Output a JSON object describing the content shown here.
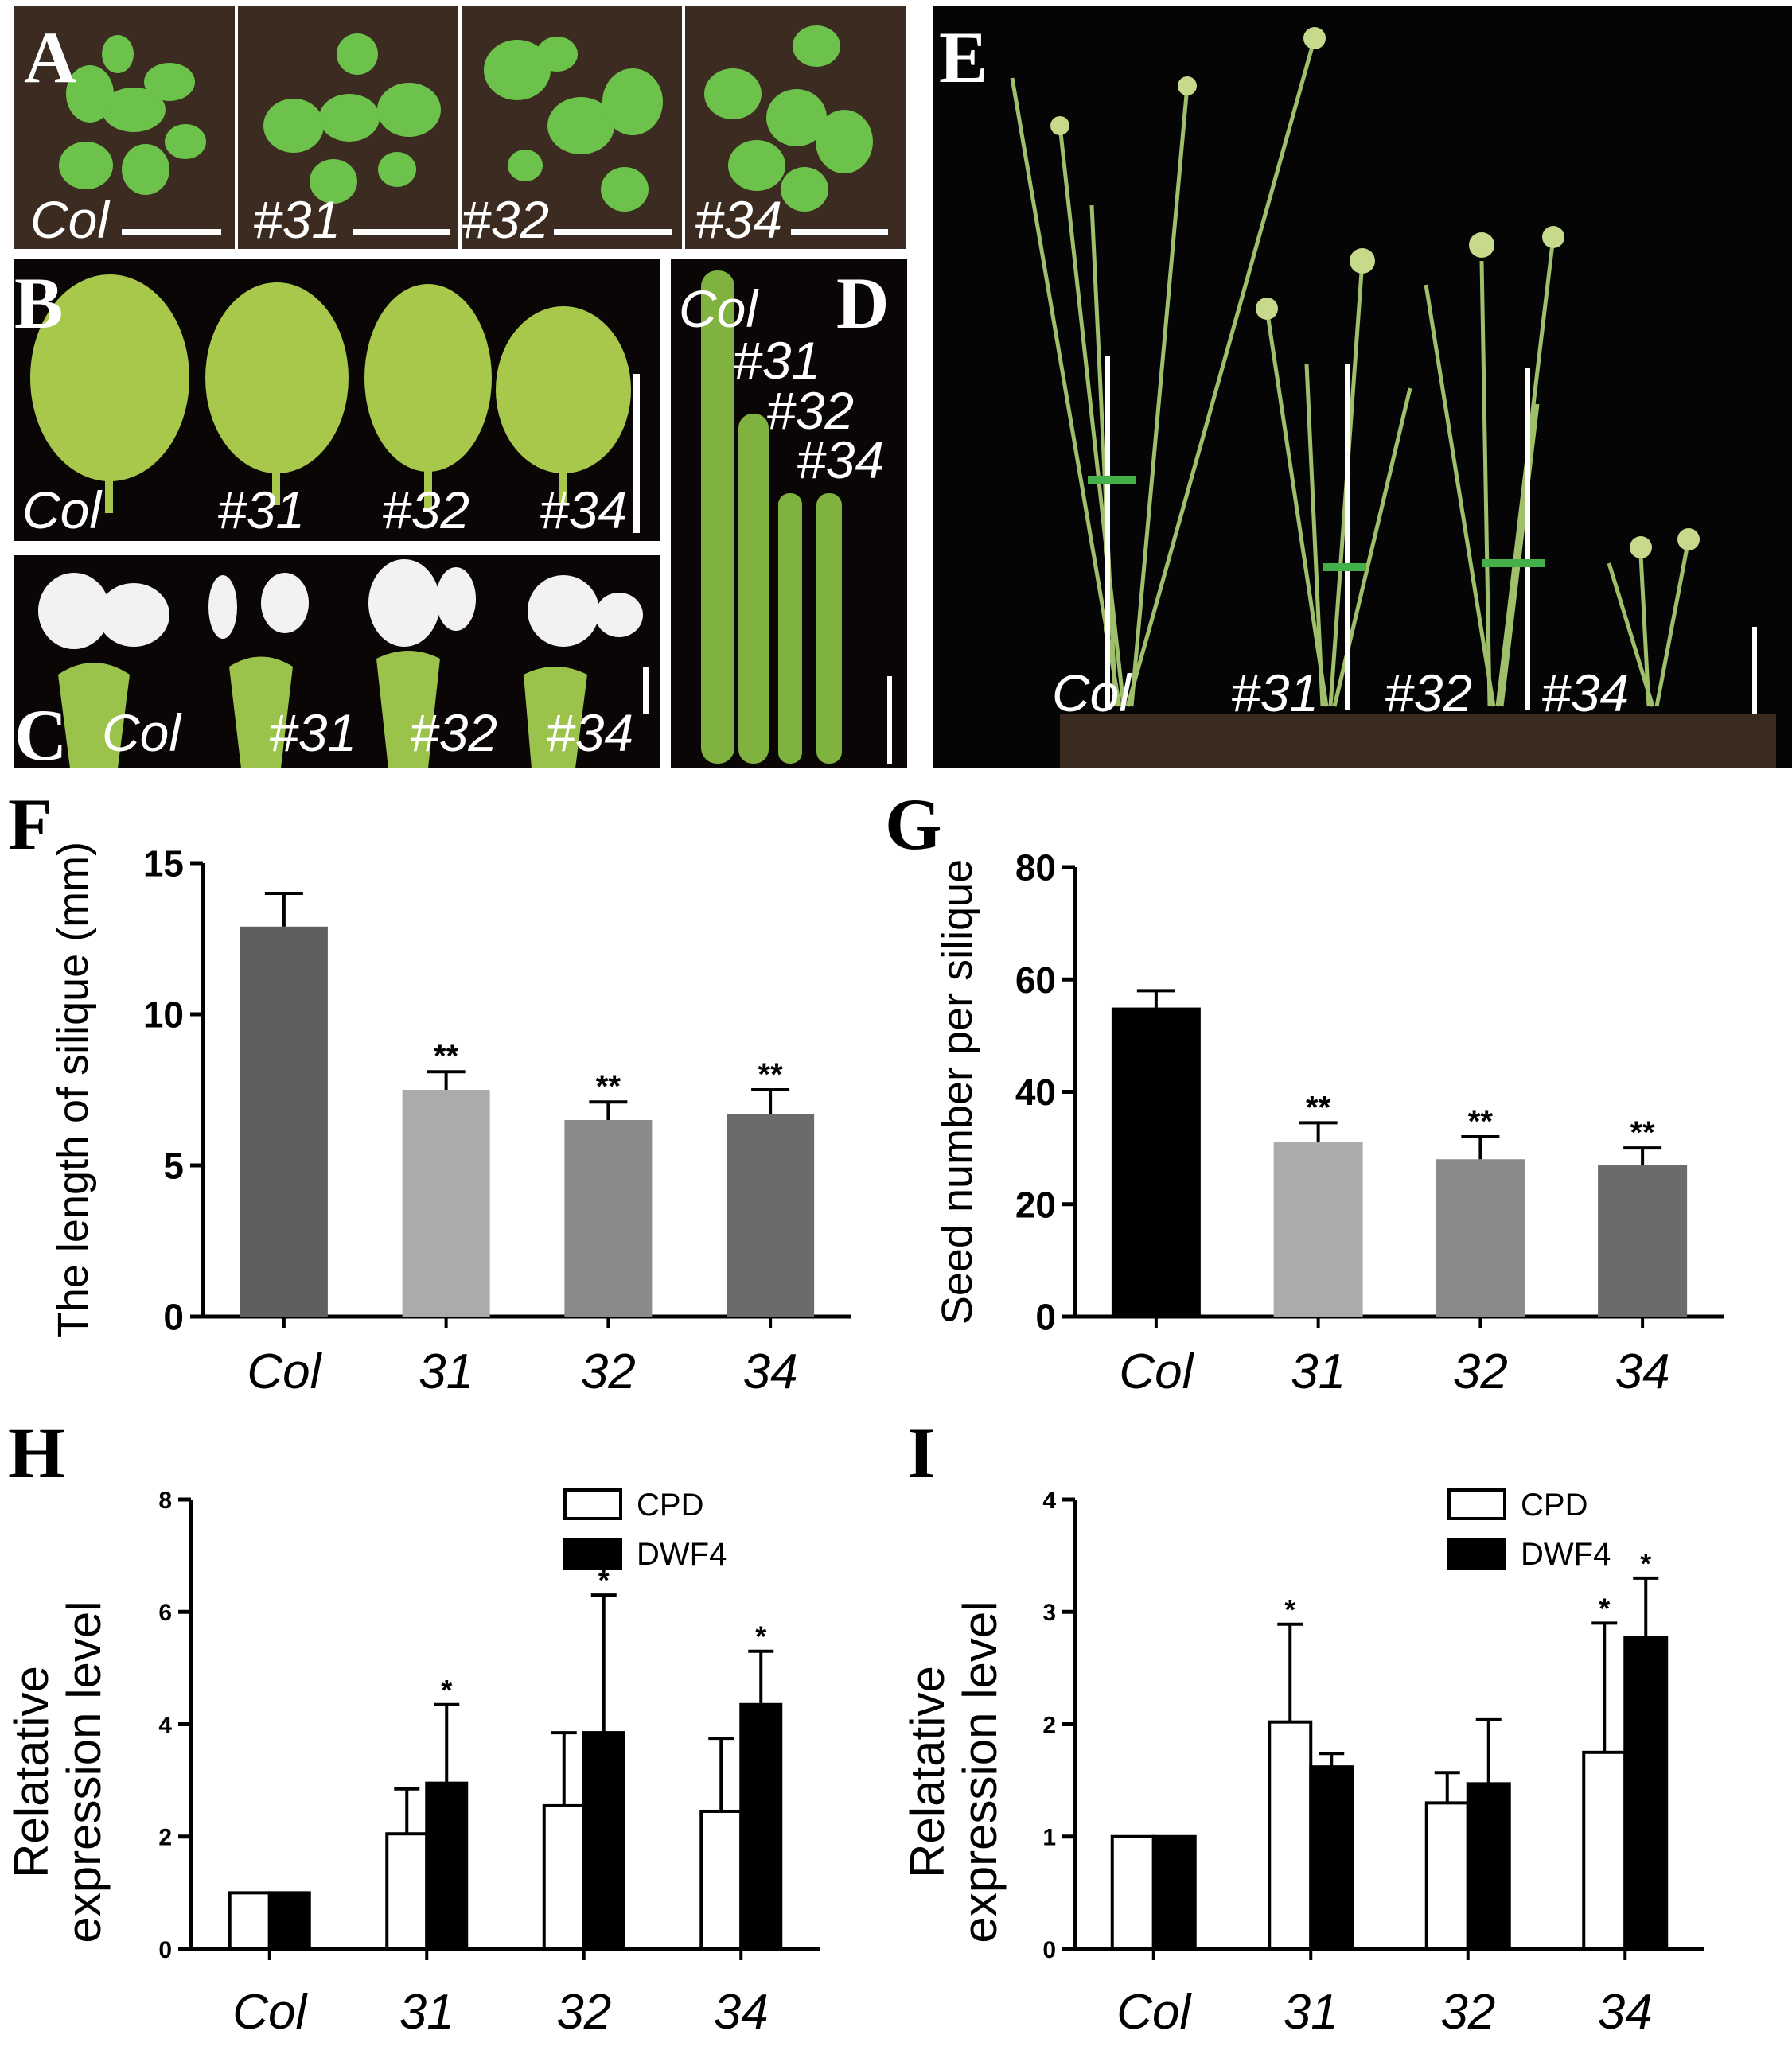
{
  "panels": {
    "A": {
      "label": "A",
      "genotypes": [
        "Col",
        "#31",
        "#32",
        "#34"
      ]
    },
    "B": {
      "label": "B",
      "genotypes": [
        "Col",
        "#31",
        "#32",
        "#34"
      ]
    },
    "C": {
      "label": "C",
      "genotypes": [
        "Col",
        "#31",
        "#32",
        "#34"
      ]
    },
    "D": {
      "label": "D",
      "genotypes": [
        "Col",
        "#31",
        "#32",
        "#34"
      ]
    },
    "E": {
      "label": "E",
      "genotypes": [
        "Col",
        "#31",
        "#32",
        "#34"
      ]
    }
  },
  "colors": {
    "soil": "#3a2a1f",
    "leaf": "#6cc24a",
    "leaf_b": "#a7c84a",
    "black_bg": "#050505",
    "flower_white": "#f2f2f0",
    "silique": "#7fb23f",
    "stem": "#9fbf6a"
  },
  "chart_data": [
    {
      "panel": "F",
      "type": "bar",
      "categories": [
        "Col",
        "31",
        "32",
        "34"
      ],
      "values": [
        12.9,
        7.5,
        6.5,
        6.7
      ],
      "errors": [
        1.1,
        0.6,
        0.6,
        0.8
      ],
      "significance": [
        "",
        "**",
        "**",
        "**"
      ],
      "bar_colors": [
        "#5f5f5f",
        "#ababab",
        "#8a8a8a",
        "#6b6b6b"
      ],
      "ylabel": "The length of silique (mm)",
      "ylim": [
        0,
        15
      ],
      "yticks": [
        0,
        5,
        10,
        15
      ]
    },
    {
      "panel": "G",
      "type": "bar",
      "categories": [
        "Col",
        "31",
        "32",
        "34"
      ],
      "values": [
        55,
        31,
        28,
        27
      ],
      "errors": [
        3,
        3.5,
        4,
        3
      ],
      "significance": [
        "",
        "**",
        "**",
        "**"
      ],
      "bar_colors": [
        "#000000",
        "#ababab",
        "#8a8a8a",
        "#6b6b6b"
      ],
      "ylabel": "Seed number per silique",
      "ylim": [
        0,
        80
      ],
      "yticks": [
        0,
        20,
        40,
        60,
        80
      ]
    },
    {
      "panel": "H",
      "type": "bar",
      "categories": [
        "Col",
        "31",
        "32",
        "34"
      ],
      "series": [
        {
          "name": "CPD",
          "values": [
            1.0,
            2.05,
            2.55,
            2.45
          ],
          "errors": [
            0,
            0.8,
            1.3,
            1.3
          ],
          "significance": [
            "",
            "",
            "",
            ""
          ],
          "fill": "#ffffff"
        },
        {
          "name": "DWF4",
          "values": [
            1.0,
            2.95,
            3.85,
            4.35
          ],
          "errors": [
            0,
            1.4,
            2.45,
            0.95
          ],
          "significance": [
            "",
            "*",
            "*",
            "*"
          ],
          "fill": "#000000"
        }
      ],
      "ylabel_lines": [
        "Relatative",
        "expression level"
      ],
      "ylim": [
        0,
        8
      ],
      "yticks": [
        0,
        2,
        4,
        6,
        8
      ],
      "legend_position": "top-right"
    },
    {
      "panel": "I",
      "type": "bar",
      "categories": [
        "Col",
        "31",
        "32",
        "34"
      ],
      "series": [
        {
          "name": "CPD",
          "values": [
            1.0,
            2.02,
            1.3,
            1.75
          ],
          "errors": [
            0,
            0.87,
            0.27,
            1.15
          ],
          "significance": [
            "",
            "*",
            "",
            "*"
          ],
          "fill": "#ffffff"
        },
        {
          "name": "DWF4",
          "values": [
            1.0,
            1.62,
            1.47,
            2.77
          ],
          "errors": [
            0,
            0.12,
            0.57,
            0.53
          ],
          "significance": [
            "",
            "",
            "",
            "*"
          ],
          "fill": "#000000"
        }
      ],
      "ylabel_lines": [
        "Relatative",
        "expression level"
      ],
      "ylim": [
        0,
        4
      ],
      "yticks": [
        0,
        1,
        2,
        3,
        4
      ],
      "legend_position": "top-right"
    }
  ],
  "chart_labels": {
    "F": "F",
    "G": "G",
    "H": "H",
    "I": "I"
  }
}
